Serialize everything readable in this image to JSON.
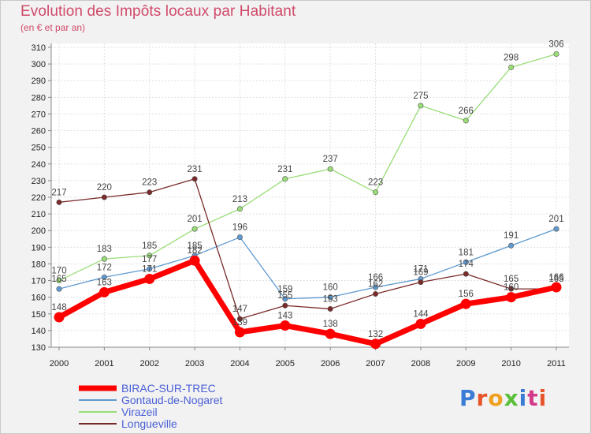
{
  "title": "Evolution des Impôts locaux par Habitant",
  "subtitle": "(en € et par an)",
  "brand": {
    "text": "Proxiti",
    "colors": [
      "#3a7bd5",
      "#e8542a",
      "#f0a020",
      "#5bbf3a",
      "#3a7bd5",
      "#d43a8a",
      "#e8542a"
    ]
  },
  "chart_data": {
    "type": "line",
    "x": [
      "2000",
      "2001",
      "2002",
      "2003",
      "2004",
      "2005",
      "2006",
      "2007",
      "2008",
      "2009",
      "2010",
      "2011"
    ],
    "ylim": [
      130,
      310
    ],
    "yticks": [
      130,
      140,
      150,
      160,
      170,
      180,
      190,
      200,
      210,
      220,
      230,
      240,
      250,
      260,
      270,
      280,
      290,
      300,
      310
    ],
    "grid": true,
    "legend_position": "bottom-left",
    "series": [
      {
        "name": "BIRAC-SUR-TREC",
        "color": "#ff0000",
        "values": [
          148,
          163,
          171,
          182,
          139,
          143,
          138,
          132,
          144,
          156,
          160,
          166
        ]
      },
      {
        "name": "Gontaud-de-Nogaret",
        "color": "#5f9ad0",
        "values": [
          165,
          172,
          177,
          185,
          196,
          159,
          160,
          166,
          171,
          181,
          191,
          201
        ]
      },
      {
        "name": "Virazeil",
        "color": "#99dd77",
        "values": [
          170,
          183,
          185,
          201,
          213,
          231,
          237,
          223,
          275,
          266,
          298,
          306
        ]
      },
      {
        "name": "Longueville",
        "color": "#7a2a2a",
        "values": [
          217,
          220,
          223,
          231,
          147,
          155,
          153,
          162,
          169,
          174,
          165,
          165
        ]
      }
    ]
  }
}
